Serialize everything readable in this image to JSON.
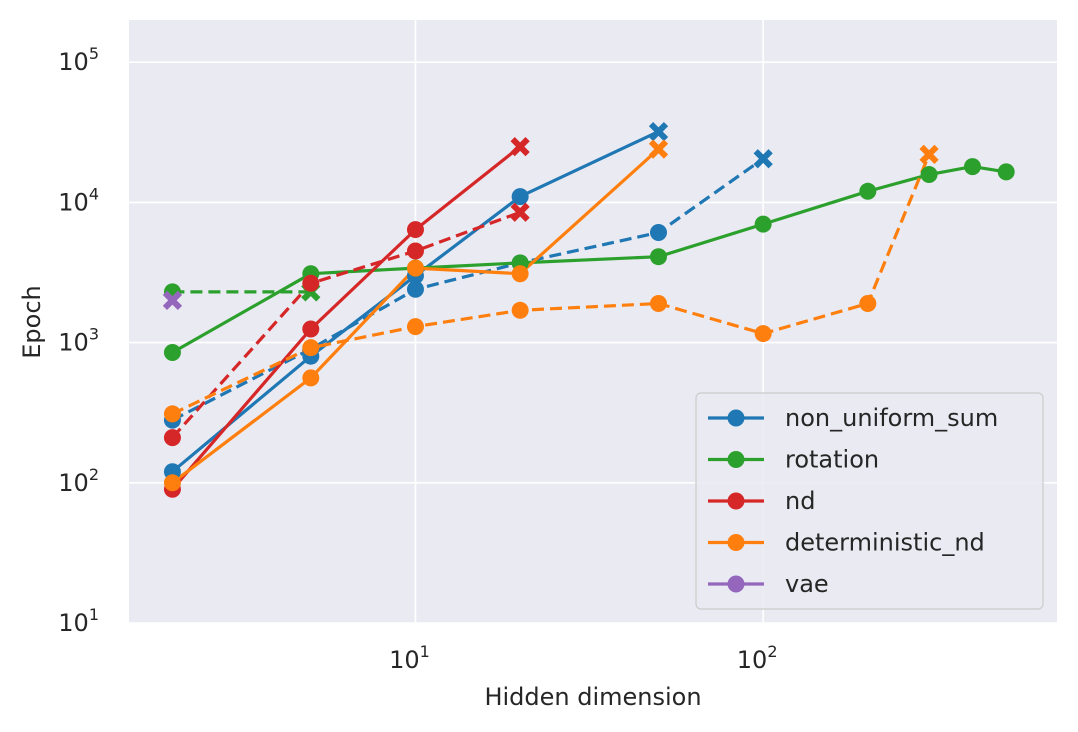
{
  "chart_data": {
    "type": "line",
    "title": "",
    "xlabel": "Hidden dimension",
    "ylabel": "Epoch",
    "xscale": "log",
    "yscale": "log",
    "xlim": [
      1.5,
      700
    ],
    "ylim": [
      10,
      200000
    ],
    "grid": true,
    "legend_position": "lower-right",
    "x_ticks": [
      {
        "base": "10",
        "exp": "1",
        "value": 10
      },
      {
        "base": "10",
        "exp": "2",
        "value": 100
      }
    ],
    "y_ticks": [
      {
        "base": "10",
        "exp": "1",
        "value": 10
      },
      {
        "base": "10",
        "exp": "2",
        "value": 100
      },
      {
        "base": "10",
        "exp": "3",
        "value": 1000
      },
      {
        "base": "10",
        "exp": "4",
        "value": 10000
      },
      {
        "base": "10",
        "exp": "5",
        "value": 100000
      }
    ],
    "series": [
      {
        "name": "non_uniform_sum",
        "color": "#1f77b4",
        "style": "solid",
        "x": [
          2,
          5,
          10,
          20
        ],
        "y": [
          120,
          800,
          3000,
          11000
        ],
        "end_x": [
          50,
          32000
        ]
      },
      {
        "name": "",
        "color": "#1f77b4",
        "style": "dashed",
        "x": [
          2,
          5,
          10,
          20,
          50
        ],
        "y": [
          280,
          900,
          2400,
          3700,
          6100
        ],
        "end_x": [
          100,
          20500
        ]
      },
      {
        "name": "rotation",
        "color": "#2ca02c",
        "style": "solid",
        "x": [
          2,
          5,
          10,
          20,
          50,
          100,
          200,
          300,
          400,
          500
        ],
        "y": [
          850,
          3100,
          3400,
          3700,
          4100,
          7000,
          12000,
          15800,
          18000,
          16500
        ],
        "end_x": null
      },
      {
        "name": "",
        "color": "#2ca02c",
        "style": "dashed",
        "x": [
          2
        ],
        "y": [
          2300
        ],
        "end_x": [
          5,
          2300
        ]
      },
      {
        "name": "nd",
        "color": "#d62728",
        "style": "solid",
        "x": [
          2,
          5,
          10
        ],
        "y": [
          90,
          1250,
          6400
        ],
        "end_x": [
          20,
          25000
        ]
      },
      {
        "name": "",
        "color": "#d62728",
        "style": "dashed",
        "x": [
          2,
          5,
          10
        ],
        "y": [
          210,
          2650,
          4500
        ],
        "end_x": [
          20,
          8500
        ]
      },
      {
        "name": "deterministic_nd",
        "color": "#ff7f0e",
        "style": "solid",
        "x": [
          2,
          5,
          10,
          20
        ],
        "y": [
          100,
          560,
          3400,
          3100
        ],
        "end_x": [
          50,
          24000
        ]
      },
      {
        "name": "",
        "color": "#ff7f0e",
        "style": "dashed",
        "x": [
          2,
          5,
          10,
          20,
          50,
          100,
          200
        ],
        "y": [
          310,
          920,
          1300,
          1700,
          1900,
          1160,
          1900
        ],
        "end_x": [
          300,
          22000
        ]
      },
      {
        "name": "vae",
        "color": "#9467bd",
        "style": "solid",
        "x": [],
        "y": [],
        "end_x": [
          2,
          2000
        ]
      }
    ],
    "legend": [
      {
        "label": "non_uniform_sum",
        "color": "#1f77b4"
      },
      {
        "label": "rotation",
        "color": "#2ca02c"
      },
      {
        "label": "nd",
        "color": "#d62728"
      },
      {
        "label": "deterministic_nd",
        "color": "#ff7f0e"
      },
      {
        "label": "vae",
        "color": "#9467bd"
      }
    ]
  }
}
